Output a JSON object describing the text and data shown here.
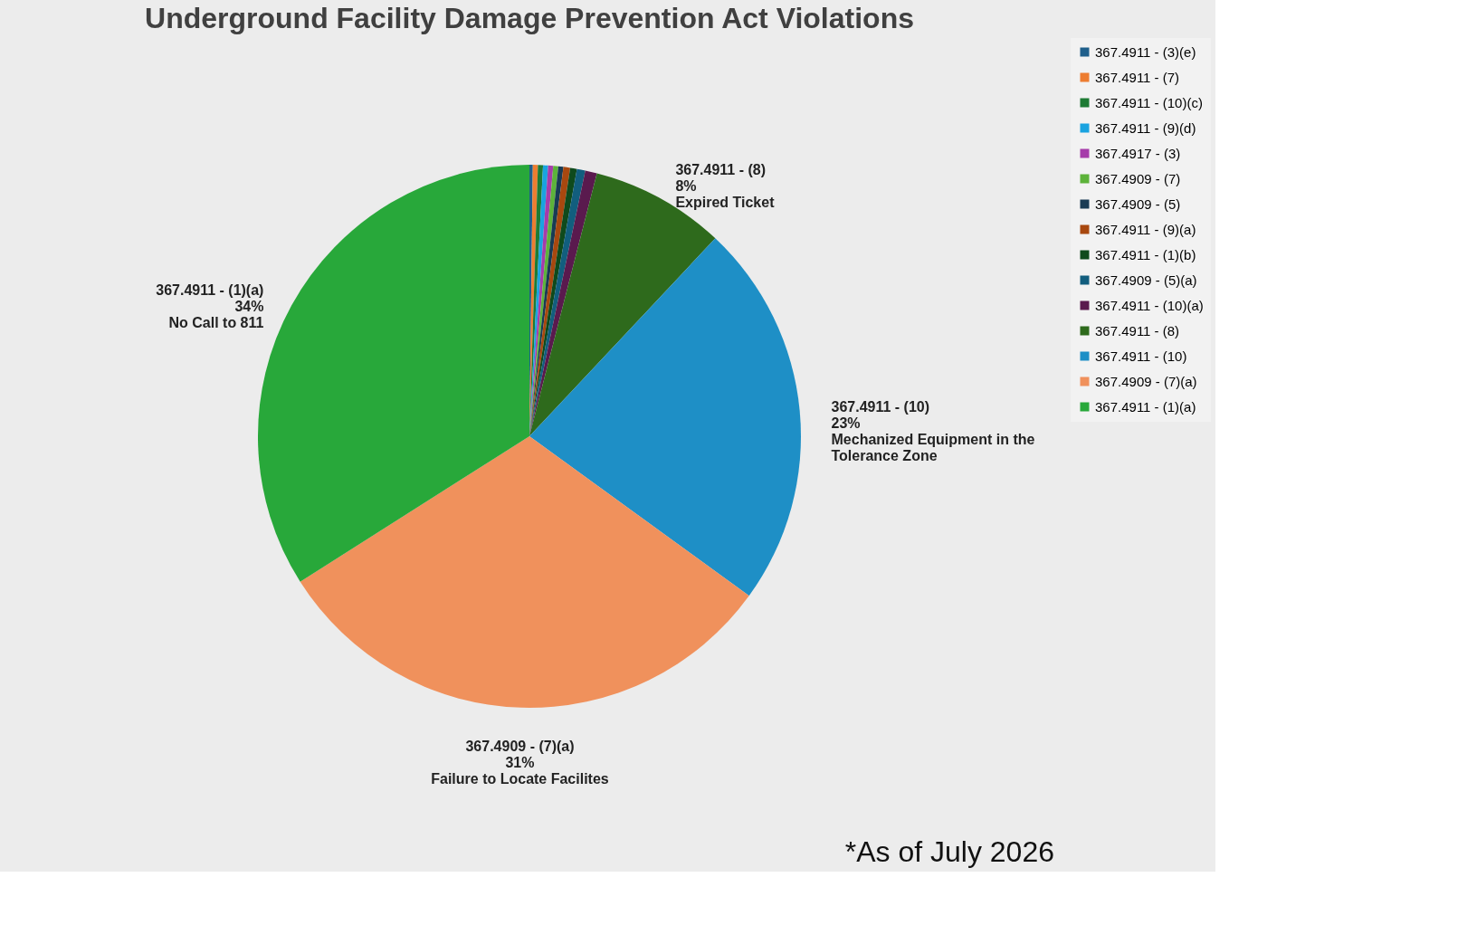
{
  "chart_data": {
    "type": "pie",
    "title": "Underground Facility Damage Prevention Act Violations",
    "categories": [
      "367.4911 - (3)(e)",
      "367.4911 - (7)",
      "367.4911 - (10)(c)",
      "367.4911 - (9)(d)",
      "367.4917 - (3)",
      "367.4909 - (7)",
      "367.4909 - (5)",
      "367.4911 - (9)(a)",
      "367.4911 - (1)(b)",
      "367.4909 - (5)(a)",
      "367.4911 - (10)(a)",
      "367.4911 - (8)",
      "367.4911 - (10)",
      "367.4909 - (7)(a)",
      "367.4911 - (1)(a)"
    ],
    "values": [
      0.2,
      0.3,
      0.3,
      0.3,
      0.3,
      0.3,
      0.3,
      0.4,
      0.4,
      0.5,
      0.7,
      8,
      23,
      31,
      34
    ],
    "colors": [
      "#1f5f8b",
      "#ed7d31",
      "#1e7b34",
      "#1aa3e0",
      "#a63caa",
      "#5db33a",
      "#193b54",
      "#a8480f",
      "#0f4a1c",
      "#125e7e",
      "#5a1a4e",
      "#2e6a1c",
      "#1e8fc6",
      "#f0915c",
      "#28a83a"
    ],
    "value_labels": [
      null,
      null,
      null,
      null,
      null,
      null,
      null,
      null,
      null,
      null,
      null,
      "367.4911 - (8)\n8%\nExpired Ticket",
      "367.4911 - (10)\n23%\nMechanized Equipment in the\nTolerance Zone",
      "367.4909 - (7)(a)\n31%\nFailure to Locate Facilites",
      "367.4911 - (1)(a)\n34%\nNo Call to 811"
    ],
    "legend": "right",
    "annotations": [
      "*As of July 2026"
    ]
  }
}
